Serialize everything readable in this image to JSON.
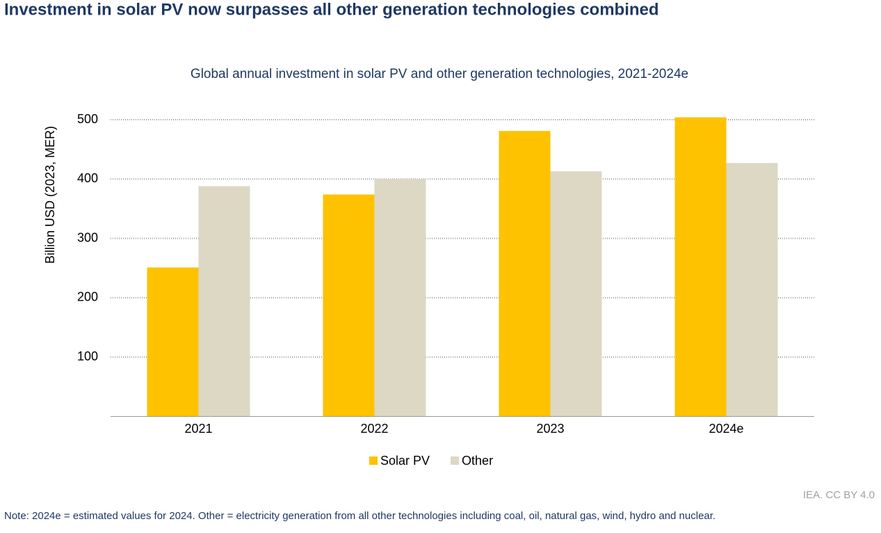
{
  "header": {
    "title": "Investment in solar PV now surpasses all other generation technologies combined"
  },
  "chart_data": {
    "type": "bar",
    "title": "Global annual investment in solar PV and other generation technologies, 2021-2024e",
    "y_label": "Billion USD (2023, MER)",
    "categories": [
      "2021",
      "2022",
      "2023",
      "2024e"
    ],
    "series": [
      {
        "name": "Solar PV",
        "color": "#fec200",
        "values": [
          251,
          374,
          481,
          504
        ]
      },
      {
        "name": "Other",
        "color": "#ddd8c4",
        "values": [
          388,
          400,
          413,
          427
        ]
      }
    ],
    "ylim": [
      0,
      500
    ],
    "yticks": [
      100,
      200,
      300,
      400,
      500
    ],
    "grid": true,
    "legend": "bottom"
  },
  "footer": {
    "source": "IEA. CC BY 4.0",
    "note": "Note: 2024e = estimated values for 2024. Other = electricity generation from all other technologies including coal, oil, natural gas, wind, hydro and nuclear."
  }
}
